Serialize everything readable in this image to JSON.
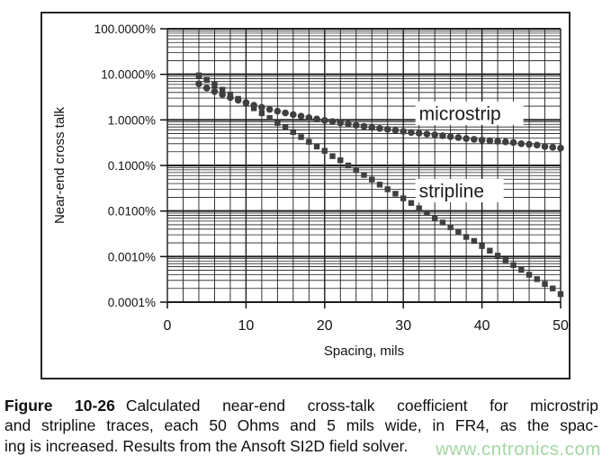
{
  "caption": {
    "label": "Figure 10-26",
    "line1": "Calculated near-end cross-talk coefficient for microstrip",
    "line2": "and stripline traces, each 50 Ohms and 5 mils wide, in FR4, as the spac-",
    "line3": "ing is increased. Results from the Ansoft SI2D field solver."
  },
  "watermark": {
    "text": "www.cntronics.com",
    "color": "#a3d7a3"
  },
  "chart_data": {
    "type": "scatter",
    "title": "",
    "xlabel": "Spacing, mils",
    "ylabel": "Near-end cross talk",
    "xlim": [
      0,
      50
    ],
    "x_ticks": [
      0,
      10,
      20,
      30,
      40,
      50
    ],
    "x_minor_step_mils": 2,
    "ylim_percent": [
      0.0001,
      100
    ],
    "y_scale": "log",
    "grid": "x-minor-every-2-mils, y-log-decades-with-minors",
    "legend_position": "in-plot-text-labels",
    "y_ticks": [
      {
        "label": "100.0000%",
        "value": 100
      },
      {
        "label": "10.0000%",
        "value": 10
      },
      {
        "label": "1.0000%",
        "value": 1
      },
      {
        "label": "0.1000%",
        "value": 0.1
      },
      {
        "label": "0.0100%",
        "value": 0.01
      },
      {
        "label": "0.0010%",
        "value": 0.001
      },
      {
        "label": "0.0001%",
        "value": 0.0001
      }
    ],
    "x": [
      4,
      5,
      6,
      7,
      8,
      9,
      10,
      11,
      12,
      13,
      14,
      15,
      16,
      17,
      18,
      19,
      20,
      21,
      22,
      23,
      24,
      25,
      26,
      27,
      28,
      29,
      30,
      31,
      32,
      33,
      34,
      35,
      36,
      37,
      38,
      39,
      40,
      41,
      42,
      43,
      44,
      45,
      46,
      47,
      48,
      49,
      50
    ],
    "series": [
      {
        "name": "microstrip",
        "marker": "circle",
        "color": "#3f3f3f",
        "values_percent": [
          6.2,
          5.0,
          4.2,
          3.6,
          3.1,
          2.7,
          2.4,
          2.1,
          1.88,
          1.7,
          1.55,
          1.42,
          1.31,
          1.21,
          1.12,
          1.05,
          0.98,
          0.92,
          0.86,
          0.81,
          0.76,
          0.72,
          0.68,
          0.65,
          0.62,
          0.59,
          0.56,
          0.53,
          0.51,
          0.49,
          0.47,
          0.45,
          0.43,
          0.41,
          0.39,
          0.375,
          0.36,
          0.35,
          0.34,
          0.33,
          0.32,
          0.3,
          0.29,
          0.28,
          0.26,
          0.25,
          0.24
        ]
      },
      {
        "name": "stripline",
        "marker": "square",
        "color": "#3f3f3f",
        "values_percent": [
          9.5,
          7.5,
          5.9,
          4.6,
          3.6,
          2.9,
          2.3,
          1.8,
          1.4,
          1.1,
          0.86,
          0.68,
          0.54,
          0.42,
          0.33,
          0.26,
          0.21,
          0.16,
          0.13,
          0.1,
          0.079,
          0.062,
          0.049,
          0.038,
          0.03,
          0.024,
          0.019,
          0.015,
          0.0115,
          0.0091,
          0.0071,
          0.0056,
          0.0044,
          0.0035,
          0.0027,
          0.0022,
          0.0017,
          0.00135,
          0.00105,
          0.00083,
          0.00065,
          0.00051,
          0.0004,
          0.00032,
          0.00025,
          0.0002,
          0.00015
        ]
      }
    ],
    "annotations": [
      {
        "text": "microstrip",
        "x_mils": 32,
        "y_percent": 1.4,
        "bg_w": 120
      },
      {
        "text": "stripline",
        "x_mils": 32,
        "y_percent": 0.028,
        "bg_w": 98
      }
    ]
  }
}
